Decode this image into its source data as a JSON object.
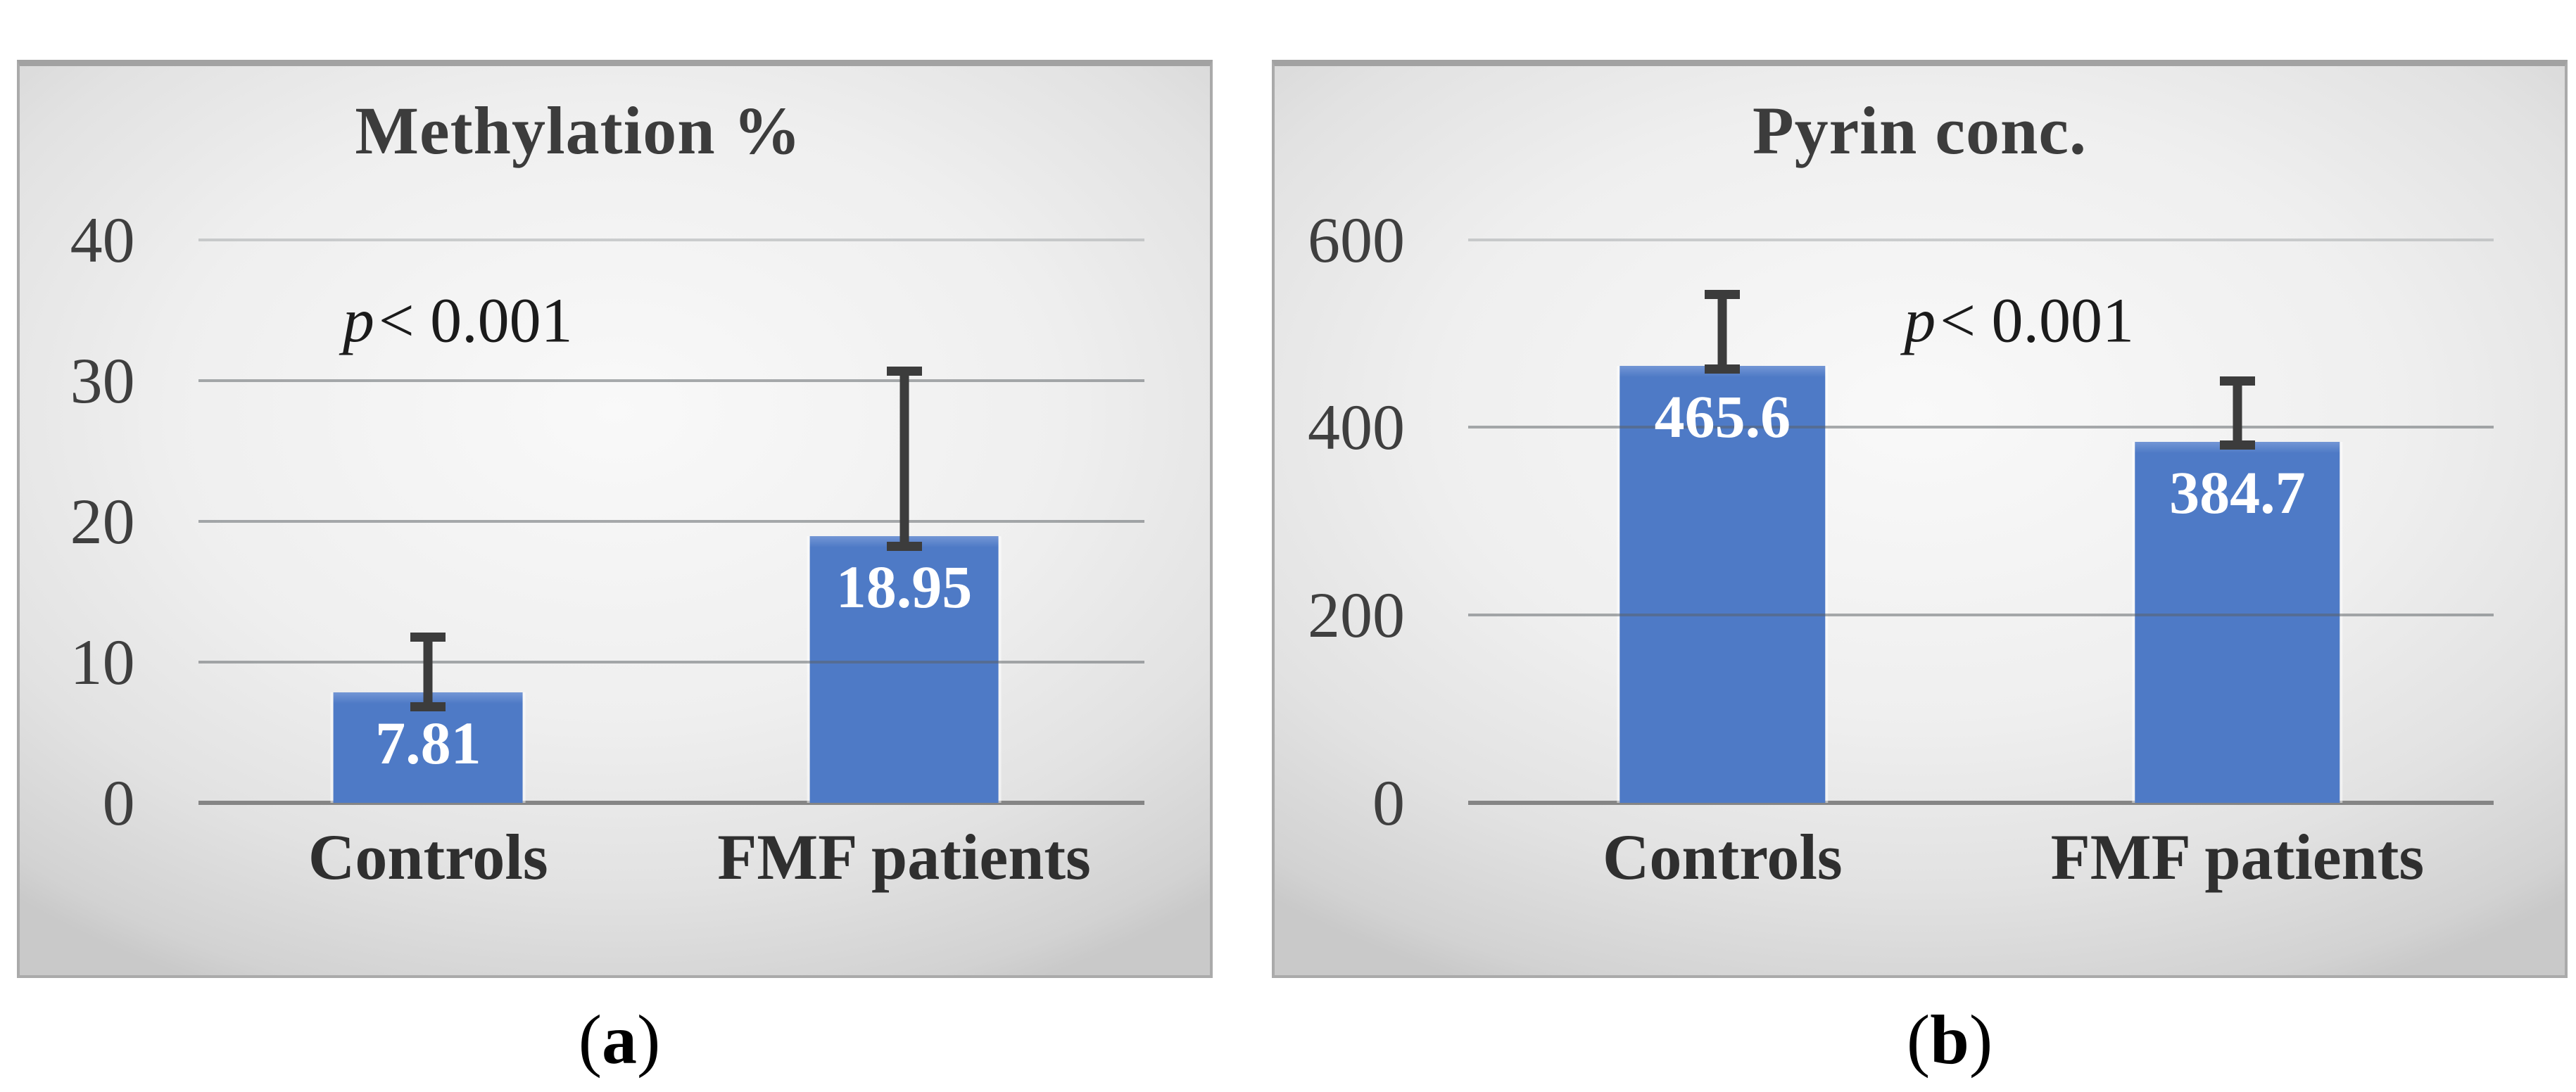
{
  "chart_data": [
    {
      "type": "bar",
      "title": "Methylation %",
      "p_annotation": {
        "italic": "p",
        "rest": "< 0.001"
      },
      "categories": [
        "Controls",
        "FMF patients"
      ],
      "values": [
        7.81,
        18.95
      ],
      "data_labels": [
        "7.81",
        "18.95"
      ],
      "errors": [
        {
          "low": 6.8,
          "high": 11.8
        },
        {
          "low": 18.2,
          "high": 30.7
        }
      ],
      "y_axis": {
        "ticks": [
          40,
          30,
          20,
          10,
          0
        ],
        "max": 40,
        "min": 0
      },
      "xlabel": "",
      "ylabel": "",
      "grid": true,
      "legend": false
    },
    {
      "type": "bar",
      "title": "Pyrin conc.",
      "p_annotation": {
        "italic": "p",
        "rest": "< 0.001"
      },
      "categories": [
        "Controls",
        "FMF patients"
      ],
      "values": [
        465.6,
        384.7
      ],
      "data_labels": [
        "465.6",
        "384.7"
      ],
      "errors": [
        {
          "low": 462,
          "high": 542
        },
        {
          "low": 381,
          "high": 450
        }
      ],
      "y_axis": {
        "ticks": [
          600,
          400,
          200,
          0
        ],
        "max": 600,
        "min": 0
      },
      "xlabel": "",
      "ylabel": "",
      "grid": true,
      "legend": false
    }
  ],
  "figure": {
    "captions": [
      {
        "open": "(",
        "letter": "a",
        "close": ")"
      },
      {
        "open": "(",
        "letter": "b",
        "close": ")"
      }
    ]
  },
  "colors": {
    "bar_fill": "#4e7ac6",
    "bar_top_highlight": "#7396d5",
    "error_bar": "#3c3c3c",
    "gridline_mid": "#9da1a4",
    "gridline_light": "#c9cccd",
    "axis_line": "#858585",
    "tick_text": "#3f3f3f",
    "title_text": "#3c3c3c",
    "data_label_text": "#ffffff",
    "panel_bg_center": "#f9f9f9",
    "panel_bg_edge": "#c9c9c9"
  }
}
